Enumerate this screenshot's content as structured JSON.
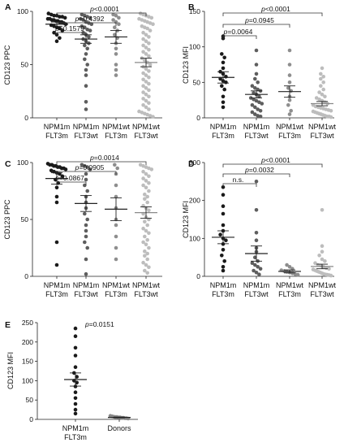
{
  "colors": {
    "NPM1m FLT3m": "#1a1a1a",
    "NPM1m FLT3wt": "#5e5e5e",
    "NPM1wt FLT3m": "#8e8e8e",
    "NPM1wt FLT3wt": "#bdbdbd",
    "Donors": "#8a8a8a"
  },
  "chart_data": [
    {
      "panel": "A",
      "type": "scatter",
      "ylabel": "CD123 PPC",
      "ylim": [
        0,
        100
      ],
      "yticks": [
        0,
        50,
        100
      ],
      "categories": [
        {
          "line1": "NPM1m",
          "line2": "FLT3m",
          "key": "NPM1m FLT3m",
          "mean": 88,
          "sem": 2,
          "points": [
            98,
            97,
            96,
            96,
            95,
            95,
            94,
            93,
            93,
            92,
            92,
            91,
            91,
            90,
            90,
            89,
            88,
            87,
            86,
            85,
            84,
            82,
            80,
            78,
            75,
            72
          ]
        },
        {
          "line1": "NPM1m",
          "line2": "FLT3wt",
          "key": "NPM1m FLT3wt",
          "mean": 74,
          "sem": 4,
          "points": [
            97,
            96,
            95,
            94,
            93,
            92,
            90,
            89,
            88,
            86,
            85,
            83,
            82,
            80,
            78,
            76,
            74,
            72,
            70,
            68,
            65,
            60,
            55,
            50,
            45,
            40,
            30,
            15,
            8
          ]
        },
        {
          "line1": "NPM1wt",
          "line2": "FLT3m",
          "key": "NPM1wt FLT3m",
          "mean": 76,
          "sem": 6,
          "points": [
            97,
            96,
            94,
            92,
            90,
            88,
            85,
            82,
            78,
            75,
            70,
            65,
            60,
            50,
            45,
            40
          ]
        },
        {
          "line1": "NPM1wt",
          "line2": "FLT3wt",
          "key": "NPM1wt FLT3wt",
          "mean": 52,
          "sem": 4,
          "points": [
            98,
            97,
            96,
            95,
            94,
            93,
            92,
            91,
            90,
            89,
            88,
            86,
            85,
            84,
            82,
            80,
            78,
            76,
            74,
            72,
            70,
            68,
            66,
            64,
            62,
            60,
            58,
            56,
            54,
            52,
            50,
            48,
            46,
            44,
            42,
            40,
            38,
            36,
            34,
            32,
            30,
            28,
            26,
            24,
            22,
            20,
            18,
            16,
            14,
            12,
            10,
            8,
            6,
            5,
            4,
            3,
            2,
            1
          ]
        }
      ],
      "comparisons": [
        {
          "to": 1,
          "label": "p=0.1579"
        },
        {
          "to": 2,
          "label": "p=0.4392"
        },
        {
          "to": 3,
          "label": "p<0.0001"
        }
      ]
    },
    {
      "panel": "B",
      "type": "scatter",
      "ylabel": "CD123 MFI",
      "ylim": [
        0,
        150
      ],
      "yticks": [
        0,
        50,
        100,
        150
      ],
      "categories": [
        {
          "line1": "NPM1m",
          "line2": "FLT3m",
          "key": "NPM1m FLT3m",
          "mean": 57,
          "sem": 8,
          "points": [
            115,
            112,
            90,
            85,
            78,
            70,
            65,
            62,
            58,
            55,
            52,
            50,
            45,
            40,
            30,
            22,
            15
          ]
        },
        {
          "line1": "NPM1m",
          "line2": "FLT3wt",
          "key": "NPM1m FLT3wt",
          "mean": 33,
          "sem": 5,
          "points": [
            95,
            75,
            62,
            55,
            50,
            45,
            42,
            40,
            38,
            35,
            33,
            30,
            28,
            26,
            24,
            22,
            20,
            18,
            15,
            12,
            10,
            8,
            5,
            3,
            2
          ]
        },
        {
          "line1": "NPM1wt",
          "line2": "FLT3m",
          "key": "NPM1wt FLT3m",
          "mean": 37,
          "sem": 8,
          "points": [
            95,
            75,
            60,
            50,
            42,
            38,
            30,
            25,
            18,
            10,
            5
          ]
        },
        {
          "line1": "NPM1wt",
          "line2": "FLT3wt",
          "key": "NPM1wt FLT3wt",
          "mean": 20,
          "sem": 3,
          "points": [
            70,
            62,
            58,
            55,
            50,
            45,
            40,
            36,
            33,
            30,
            28,
            26,
            24,
            22,
            20,
            18,
            16,
            15,
            14,
            13,
            12,
            11,
            10,
            9,
            8,
            7,
            6,
            5,
            4,
            3,
            2,
            2,
            1
          ]
        }
      ],
      "comparisons": [
        {
          "to": 1,
          "label": "p=0.0064"
        },
        {
          "to": 2,
          "label": "p=0.0945"
        },
        {
          "to": 3,
          "label": "p<0.0001"
        }
      ]
    },
    {
      "panel": "C",
      "type": "scatter",
      "ylabel": "CD123 PPC",
      "ylim": [
        0,
        100
      ],
      "yticks": [
        0,
        50,
        100
      ],
      "categories": [
        {
          "line1": "NPM1m",
          "line2": "FLT3m",
          "key": "NPM1m FLT3m",
          "mean": 86,
          "sem": 5,
          "points": [
            99,
            98,
            98,
            97,
            97,
            96,
            96,
            95,
            95,
            94,
            93,
            92,
            91,
            90,
            88,
            85,
            82,
            78,
            70,
            65,
            30,
            10
          ]
        },
        {
          "line1": "NPM1m",
          "line2": "FLT3wt",
          "key": "NPM1m FLT3wt",
          "mean": 64,
          "sem": 7,
          "points": [
            98,
            97,
            96,
            94,
            90,
            85,
            80,
            75,
            70,
            65,
            60,
            55,
            50,
            45,
            40,
            35,
            30,
            25,
            15,
            2
          ]
        },
        {
          "line1": "NPM1wt",
          "line2": "FLT3m",
          "key": "NPM1wt FLT3m",
          "mean": 59,
          "sem": 10,
          "points": [
            98,
            95,
            90,
            80,
            70,
            60,
            50,
            45,
            35,
            25,
            15
          ]
        },
        {
          "line1": "NPM1wt",
          "line2": "FLT3wt",
          "key": "NPM1wt FLT3wt",
          "mean": 56,
          "sem": 5,
          "points": [
            98,
            97,
            96,
            95,
            94,
            92,
            90,
            88,
            86,
            84,
            82,
            80,
            78,
            75,
            72,
            70,
            68,
            65,
            62,
            60,
            58,
            55,
            52,
            50,
            48,
            45,
            42,
            40,
            38,
            35,
            32,
            30,
            28,
            25,
            22,
            20,
            18,
            15,
            12,
            10,
            8,
            5,
            3
          ]
        }
      ],
      "comparisons": [
        {
          "to": 1,
          "label": "p=0.0867"
        },
        {
          "to": 2,
          "label": "p=0.0905"
        },
        {
          "to": 3,
          "label": "p=0.0014"
        }
      ]
    },
    {
      "panel": "D",
      "type": "scatter",
      "ylabel": "CD123 MFI",
      "ylim": [
        0,
        300
      ],
      "yticks": [
        0,
        100,
        200,
        300
      ],
      "categories": [
        {
          "line1": "NPM1m",
          "line2": "FLT3m",
          "key": "NPM1m FLT3m",
          "mean": 103,
          "sem": 17,
          "points": [
            235,
            215,
            185,
            165,
            135,
            120,
            110,
            100,
            95,
            85,
            70,
            55,
            40,
            25,
            15
          ]
        },
        {
          "line1": "NPM1m",
          "line2": "FLT3wt",
          "key": "NPM1m FLT3wt",
          "mean": 60,
          "sem": 20,
          "points": [
            250,
            175,
            115,
            95,
            75,
            65,
            50,
            40,
            35,
            30,
            25,
            20,
            15,
            10,
            5
          ]
        },
        {
          "line1": "NPM1wt",
          "line2": "FLT3m",
          "key": "NPM1wt FLT3m",
          "mean": 13,
          "sem": 4,
          "points": [
            30,
            25,
            20,
            16,
            14,
            12,
            10,
            8,
            6,
            4
          ]
        },
        {
          "line1": "NPM1wt",
          "line2": "FLT3wt",
          "key": "NPM1wt FLT3wt",
          "mean": 26,
          "sem": 6,
          "points": [
            175,
            80,
            65,
            55,
            45,
            40,
            35,
            30,
            28,
            25,
            22,
            20,
            18,
            16,
            14,
            12,
            10,
            8,
            6,
            5,
            4,
            3,
            2
          ]
        }
      ],
      "comparisons": [
        {
          "to": 1,
          "label": "n.s."
        },
        {
          "to": 2,
          "label": "p=0.0032"
        },
        {
          "to": 3,
          "label": "p<0.0001"
        }
      ]
    },
    {
      "panel": "E",
      "type": "scatter",
      "ylabel": "CD123 MFI",
      "ylim": [
        0,
        250
      ],
      "yticks": [
        0,
        50,
        100,
        150,
        200,
        250
      ],
      "categories": [
        {
          "line1": "NPM1m",
          "line2": "FLT3m",
          "key": "NPM1m FLT3m",
          "mean": 103,
          "sem": 17,
          "points": [
            235,
            215,
            185,
            165,
            135,
            120,
            110,
            100,
            95,
            85,
            70,
            55,
            40,
            25,
            15
          ]
        },
        {
          "line1": "Donors",
          "line2": "",
          "key": "Donors",
          "mean": 5,
          "sem": 1,
          "points": [
            9,
            8,
            7,
            6,
            6,
            5,
            5,
            4,
            4,
            3,
            3,
            2
          ]
        }
      ],
      "comparisons": [],
      "annotation": "p=0.0151"
    }
  ]
}
